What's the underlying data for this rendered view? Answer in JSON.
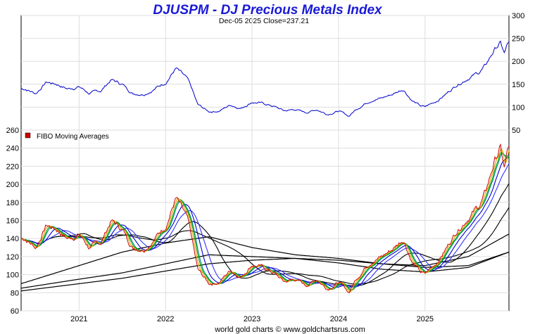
{
  "chart_data": [
    {
      "type": "line",
      "title": "DJUSPM - DJ Precious Metals Index",
      "subtitle": "Dec-05  2025   Close=237.21",
      "y_axis_side": "right",
      "ylim": [
        50,
        300
      ],
      "yticks": [
        50,
        100,
        150,
        200,
        250,
        300
      ],
      "series_color": "#0000cc",
      "series": [
        {
          "name": "DJUSPM",
          "x": [
            2020.38,
            2020.5,
            2020.62,
            2020.75,
            2020.87,
            2021.0,
            2021.12,
            2021.25,
            2021.37,
            2021.5,
            2021.62,
            2021.75,
            2021.87,
            2022.0,
            2022.12,
            2022.25,
            2022.3,
            2022.37,
            2022.5,
            2022.62,
            2022.75,
            2022.87,
            2023.0,
            2023.12,
            2023.25,
            2023.37,
            2023.5,
            2023.62,
            2023.75,
            2023.87,
            2024.0,
            2024.12,
            2024.2,
            2024.3,
            2024.4,
            2024.5,
            2024.62,
            2024.75,
            2024.85,
            2024.95,
            2025.0,
            2025.12,
            2025.25,
            2025.37,
            2025.5,
            2025.62,
            2025.7,
            2025.8,
            2025.87,
            2025.92,
            2025.95
          ],
          "values": [
            140,
            130,
            155,
            150,
            140,
            145,
            130,
            135,
            160,
            150,
            130,
            130,
            140,
            155,
            185,
            160,
            140,
            105,
            90,
            92,
            105,
            98,
            112,
            108,
            102,
            92,
            95,
            88,
            95,
            85,
            92,
            80,
            95,
            108,
            118,
            120,
            128,
            140,
            115,
            102,
            100,
            112,
            130,
            150,
            165,
            175,
            190,
            225,
            240,
            215,
            237
          ]
        }
      ]
    },
    {
      "type": "line",
      "title": "FIBO  Moving  Averages",
      "ylim": [
        60,
        260
      ],
      "yticks": [
        60,
        80,
        100,
        120,
        140,
        160,
        180,
        200,
        220,
        240,
        260
      ],
      "xticks": [
        2021,
        2022,
        2023,
        2024,
        2025
      ],
      "xlabels": [
        "2021",
        "2022",
        "2023",
        "2024",
        "2025"
      ],
      "xlim": [
        2020.33,
        2025.97
      ],
      "legend": {
        "label": "FIBO  Moving  Averages",
        "color": "#cc0000",
        "position": "top-left"
      },
      "series": [
        {
          "name": "price",
          "color": "#cc0000",
          "values_ref": "chart_data.0.series.0"
        },
        {
          "name": "ma-short-1",
          "color": "#e8a000",
          "lag": 0.02
        },
        {
          "name": "ma-short-2",
          "color": "#00aa00",
          "lag": 0.04
        },
        {
          "name": "ma-short-3",
          "color": "#008888",
          "lag": 0.07
        },
        {
          "name": "ma-mid-1",
          "color": "#0000cc",
          "lag": 0.12
        },
        {
          "name": "ma-mid-2",
          "color": "#3333ff",
          "lag": 0.2
        },
        {
          "name": "ma-long-1",
          "color": "#000000",
          "lag": 0.35
        },
        {
          "name": "ma-long-2",
          "color": "#000000",
          "lag": 0.6
        }
      ],
      "long_term_lines": [
        {
          "name": "ma-vlong-1",
          "color": "#000000",
          "x": [
            2020.33,
            2021.0,
            2021.5,
            2022.0,
            2022.5,
            2023.0,
            2023.5,
            2024.0,
            2024.5,
            2025.0,
            2025.5,
            2025.97
          ],
          "values": [
            90,
            110,
            125,
            135,
            142,
            130,
            122,
            118,
            112,
            110,
            120,
            145
          ]
        },
        {
          "name": "ma-vlong-2",
          "color": "#000000",
          "x": [
            2020.33,
            2021.0,
            2021.5,
            2022.0,
            2022.5,
            2023.0,
            2023.5,
            2024.0,
            2024.5,
            2025.0,
            2025.5,
            2025.97
          ],
          "values": [
            85,
            95,
            102,
            112,
            122,
            120,
            118,
            113,
            106,
            103,
            108,
            125
          ]
        },
        {
          "name": "ma-vlong-3",
          "color": "#000000",
          "x": [
            2020.33,
            2021.0,
            2021.5,
            2022.0,
            2022.5,
            2023.0,
            2023.5,
            2024.0,
            2024.5,
            2025.0,
            2025.5,
            2025.97
          ],
          "values": [
            82,
            90,
            96,
            104,
            112,
            116,
            118,
            116,
            112,
            108,
            110,
            125
          ]
        }
      ]
    }
  ],
  "footer": "world gold charts © www.goldchartsrus.com"
}
